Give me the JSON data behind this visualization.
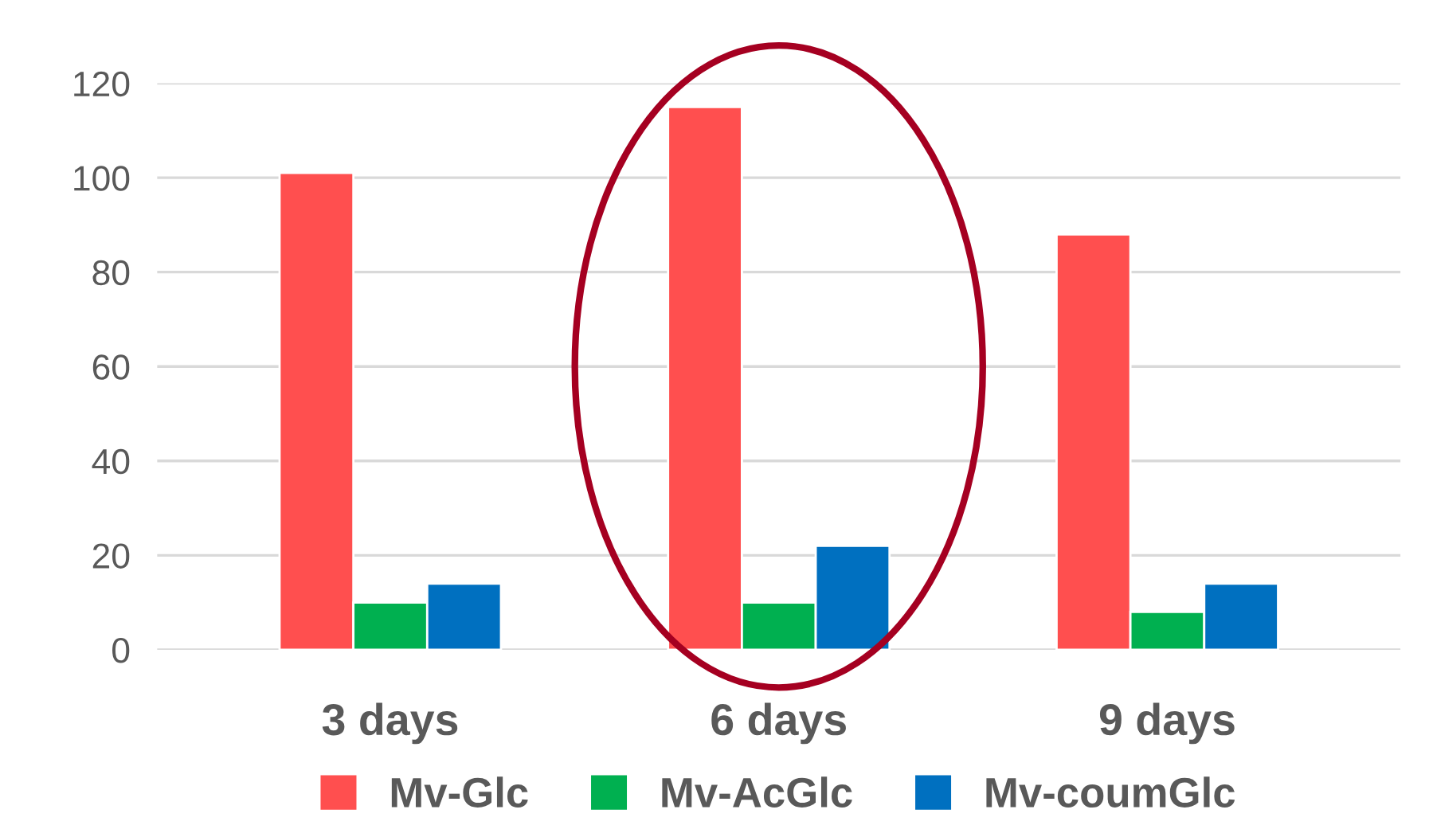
{
  "chart_data": {
    "type": "bar",
    "categories": [
      "3 days",
      "6 days",
      "9 days"
    ],
    "series": [
      {
        "name": "Mv-Glc",
        "color": "#ff4f4f",
        "values": [
          101,
          115,
          88
        ]
      },
      {
        "name": "Mv-AcGlc",
        "color": "#00b050",
        "values": [
          10,
          10,
          8
        ]
      },
      {
        "name": "Mv-coumGlc",
        "color": "#0070c0",
        "values": [
          14,
          22,
          14
        ]
      }
    ],
    "ylim": [
      0,
      120
    ],
    "yticks": [
      0,
      20,
      40,
      60,
      80,
      100,
      120
    ],
    "grid": "y",
    "legend": "bottom"
  }
}
